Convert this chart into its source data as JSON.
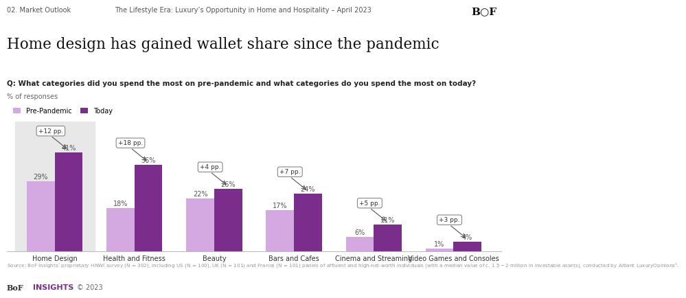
{
  "title": "Home design has gained wallet share since the pandemic",
  "header_left": "02. Market Outlook",
  "header_center": "The Lifestyle Era: Luxury’s Opportunity in Home and Hospitality – April 2023",
  "question": "Q: What categories did you spend the most on pre-pandemic and what categories do you spend the most on today?",
  "y_label": "% of responses",
  "legend_pre": "Pre-Pandemic",
  "legend_today": "Today",
  "categories": [
    "Home Design",
    "Health and Fitness",
    "Beauty",
    "Bars and Cafes",
    "Cinema and Streaming",
    "Video Games and Consoles"
  ],
  "pre_pandemic": [
    29,
    18,
    22,
    17,
    6,
    1
  ],
  "today": [
    41,
    36,
    26,
    24,
    11,
    4
  ],
  "changes": [
    "+12 pp.",
    "+18 pp.",
    "+4 pp.",
    "+7 pp.",
    "+5 pp.",
    "+3 pp."
  ],
  "color_pre": "#d4a8e0",
  "color_today": "#7b2d8b",
  "color_highlight_bg": "#e8e8e8",
  "background_color": "#ffffff",
  "footer_source": "Source: BoF Insights’ proprietary HNWI survey (N = 302), including US (N = 100), UK (N = 101) and France (N = 101) panels of affluent and high-net-worth individuals (with a median value of c. $1.5-$2 million in investable assets), conducted by Altiant LuxuryOpinions¹.",
  "footer_brand": "BoF INSIGHTS © 2023"
}
